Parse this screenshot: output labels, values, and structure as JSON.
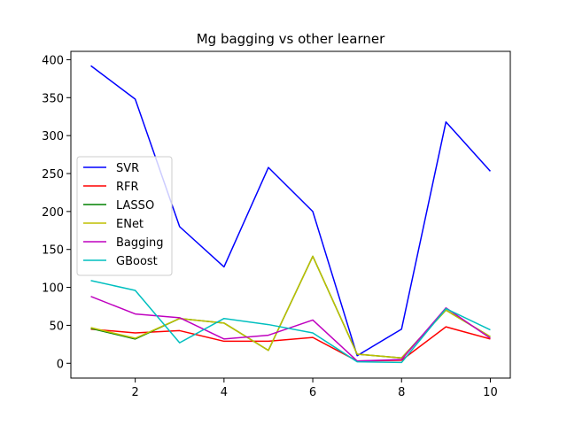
{
  "chart_data": {
    "type": "line",
    "title": "Mg bagging vs other learner",
    "xlabel": "",
    "ylabel": "",
    "x": [
      1,
      2,
      3,
      4,
      5,
      6,
      7,
      8,
      9,
      10
    ],
    "xlim": [
      0.55,
      10.45
    ],
    "ylim": [
      -19.5,
      411
    ],
    "xticks": [
      2,
      4,
      6,
      8,
      10
    ],
    "yticks": [
      0,
      50,
      100,
      150,
      200,
      250,
      300,
      350,
      400
    ],
    "grid": false,
    "legend_position": "center-left",
    "series": [
      {
        "name": "SVR",
        "color": "#0000ff",
        "values": [
          392,
          348,
          180,
          127,
          258,
          200,
          10,
          45,
          318,
          253
        ]
      },
      {
        "name": "RFR",
        "color": "#ff0000",
        "values": [
          45,
          40,
          43,
          29,
          29,
          34,
          3,
          4,
          48,
          32
        ]
      },
      {
        "name": "LASSO",
        "color": "#008000",
        "values": [
          46,
          32,
          59,
          53,
          17,
          141,
          12,
          7,
          70,
          35
        ]
      },
      {
        "name": "ENet",
        "color": "#bfbf00",
        "values": [
          47,
          33,
          59,
          53,
          17,
          141,
          12,
          7,
          70,
          35
        ]
      },
      {
        "name": "Bagging",
        "color": "#bf00bf",
        "values": [
          88,
          65,
          60,
          32,
          37,
          57,
          3,
          5,
          73,
          33
        ]
      },
      {
        "name": "GBoost",
        "color": "#00bfbf",
        "values": [
          109,
          96,
          27,
          59,
          51,
          40,
          2,
          1,
          72,
          44
        ]
      }
    ]
  }
}
